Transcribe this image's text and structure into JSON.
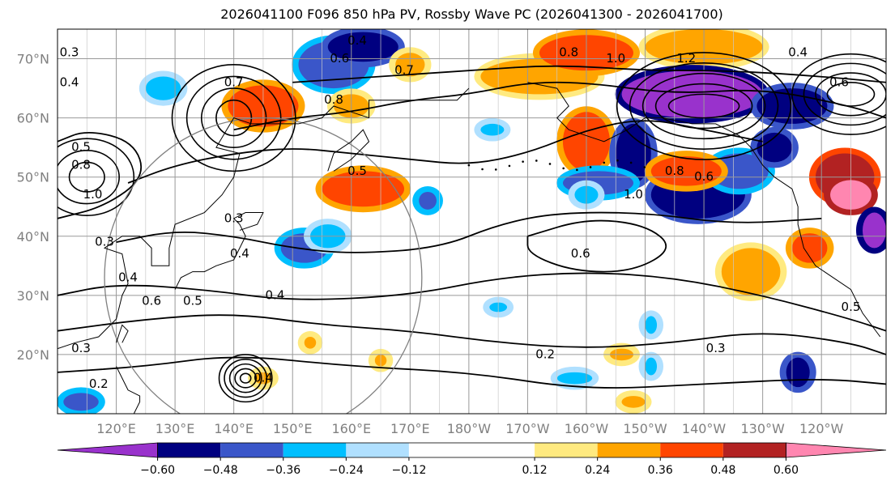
{
  "title": "2026041100 F096 850 hPa PV, Rossby Wave PC (2026041300 - 2026041700)",
  "map": {
    "projection": "PlateCarree",
    "extent": {
      "lon_min": 110,
      "lon_max": 251,
      "lat_min": 10,
      "lat_max": 75
    },
    "lat_ticks": [
      {
        "value": 20,
        "label": "20°N"
      },
      {
        "value": 30,
        "label": "30°N"
      },
      {
        "value": 40,
        "label": "40°N"
      },
      {
        "value": 50,
        "label": "50°N"
      },
      {
        "value": 60,
        "label": "60°N"
      },
      {
        "value": 70,
        "label": "70°N"
      }
    ],
    "lon_ticks": [
      {
        "value": 120,
        "label": "120°E"
      },
      {
        "value": 130,
        "label": "130°E"
      },
      {
        "value": 140,
        "label": "140°E"
      },
      {
        "value": 150,
        "label": "150°E"
      },
      {
        "value": 160,
        "label": "160°E"
      },
      {
        "value": 170,
        "label": "170°E"
      },
      {
        "value": 180,
        "label": "180°W"
      },
      {
        "value": 190,
        "label": "170°W"
      },
      {
        "value": 200,
        "label": "160°W"
      },
      {
        "value": 210,
        "label": "150°W"
      },
      {
        "value": 220,
        "label": "140°W"
      },
      {
        "value": 230,
        "label": "130°W"
      },
      {
        "value": 240,
        "label": "120°W"
      }
    ],
    "gridline_color": "#999999",
    "coast_color": "#000000",
    "contour_field": "850 hPa PV",
    "contour_labels": [
      {
        "text": "0.4",
        "lon": 112,
        "lat": 66
      },
      {
        "text": "0.3",
        "lon": 112,
        "lat": 71
      },
      {
        "text": "0.8",
        "lon": 114,
        "lat": 52
      },
      {
        "text": "1.0",
        "lon": 116,
        "lat": 47
      },
      {
        "text": "0.5",
        "lon": 114,
        "lat": 55
      },
      {
        "text": "0.3",
        "lon": 118,
        "lat": 39
      },
      {
        "text": "0.4",
        "lon": 122,
        "lat": 33
      },
      {
        "text": "0.6",
        "lon": 126,
        "lat": 29
      },
      {
        "text": "0.5",
        "lon": 133,
        "lat": 29
      },
      {
        "text": "0.4",
        "lon": 147,
        "lat": 30
      },
      {
        "text": "0.3",
        "lon": 140,
        "lat": 43
      },
      {
        "text": "0.4",
        "lon": 141,
        "lat": 37
      },
      {
        "text": "0.5",
        "lon": 161,
        "lat": 51
      },
      {
        "text": "0.8",
        "lon": 157,
        "lat": 63
      },
      {
        "text": "0.4",
        "lon": 161,
        "lat": 73
      },
      {
        "text": "0.6",
        "lon": 158,
        "lat": 70
      },
      {
        "text": "0.7",
        "lon": 140,
        "lat": 66
      },
      {
        "text": "0.7",
        "lon": 169,
        "lat": 68
      },
      {
        "text": "0.8",
        "lon": 197,
        "lat": 71
      },
      {
        "text": "1.0",
        "lon": 205,
        "lat": 70
      },
      {
        "text": "1.2",
        "lon": 217,
        "lat": 70
      },
      {
        "text": "1.0",
        "lon": 208,
        "lat": 47
      },
      {
        "text": "0.8",
        "lon": 215,
        "lat": 51
      },
      {
        "text": "0.6",
        "lon": 220,
        "lat": 50
      },
      {
        "text": "0.6",
        "lon": 199,
        "lat": 37
      },
      {
        "text": "0.2",
        "lon": 193,
        "lat": 20
      },
      {
        "text": "0.3",
        "lon": 222,
        "lat": 21
      },
      {
        "text": "0.5",
        "lon": 245,
        "lat": 28
      },
      {
        "text": "0.6",
        "lon": 243,
        "lat": 66
      },
      {
        "text": "0.4",
        "lon": 236,
        "lat": 71
      },
      {
        "text": "0.3",
        "lon": 114,
        "lat": 21
      },
      {
        "text": "0.2",
        "lon": 117,
        "lat": 15
      },
      {
        "text": "0.4",
        "lon": 145,
        "lat": 16
      }
    ]
  },
  "colorbar": {
    "levels": [
      -0.72,
      -0.6,
      -0.48,
      -0.36,
      -0.24,
      -0.12,
      0.12,
      0.24,
      0.36,
      0.48,
      0.6,
      0.72
    ],
    "tick_labels": [
      "−0.60",
      "−0.48",
      "−0.36",
      "−0.24",
      "−0.12",
      "0.12",
      "0.24",
      "0.36",
      "0.48",
      "0.60"
    ],
    "colors": [
      "#9932cc",
      "#000080",
      "#3a56c9",
      "#00bfff",
      "#b0e0ff",
      "#ffffff",
      "#ffea80",
      "#ffa500",
      "#ff4500",
      "#b22222",
      "#ff86b0"
    ],
    "extend": "both"
  },
  "shaded_anomalies": [
    {
      "lon": 128,
      "lat": 65,
      "rx": 3,
      "ry": 2,
      "value": -0.3
    },
    {
      "lon": 157,
      "lat": 69,
      "rx": 6,
      "ry": 4,
      "value": -0.4
    },
    {
      "lon": 162,
      "lat": 72,
      "rx": 6,
      "ry": 2.5,
      "value": -0.52
    },
    {
      "lon": 145,
      "lat": 62,
      "rx": 6,
      "ry": 3.5,
      "value": 0.42
    },
    {
      "lon": 160,
      "lat": 62,
      "rx": 3,
      "ry": 2,
      "value": 0.3
    },
    {
      "lon": 170,
      "lat": 69,
      "rx": 2.5,
      "ry": 2,
      "value": 0.3
    },
    {
      "lon": 192,
      "lat": 67,
      "rx": 10,
      "ry": 3,
      "value": 0.3
    },
    {
      "lon": 200,
      "lat": 71,
      "rx": 8,
      "ry": 3,
      "value": 0.45
    },
    {
      "lon": 220,
      "lat": 72,
      "rx": 10,
      "ry": 3,
      "value": 0.35
    },
    {
      "lon": 200,
      "lat": 56,
      "rx": 4,
      "ry": 5,
      "value": 0.45
    },
    {
      "lon": 218,
      "lat": 64,
      "rx": 12,
      "ry": 4,
      "value": -0.62
    },
    {
      "lon": 235,
      "lat": 62,
      "rx": 6,
      "ry": 3,
      "value": -0.5
    },
    {
      "lon": 208,
      "lat": 54,
      "rx": 3,
      "ry": 5,
      "value": -0.55
    },
    {
      "lon": 202,
      "lat": 49,
      "rx": 6,
      "ry": 2,
      "value": -0.45
    },
    {
      "lon": 219,
      "lat": 47,
      "rx": 8,
      "ry": 4,
      "value": -0.5
    },
    {
      "lon": 226,
      "lat": 51,
      "rx": 5,
      "ry": 3,
      "value": -0.4
    },
    {
      "lon": 217,
      "lat": 51,
      "rx": 6,
      "ry": 2.5,
      "value": 0.42
    },
    {
      "lon": 232,
      "lat": 55,
      "rx": 3,
      "ry": 2.5,
      "value": -0.6
    },
    {
      "lon": 244,
      "lat": 50,
      "rx": 5,
      "ry": 4,
      "value": 0.5
    },
    {
      "lon": 245,
      "lat": 47,
      "rx": 3.5,
      "ry": 2.5,
      "value": 0.65
    },
    {
      "lon": 249,
      "lat": 41,
      "rx": 2,
      "ry": 3,
      "value": -0.65
    },
    {
      "lon": 238,
      "lat": 38,
      "rx": 3,
      "ry": 2.5,
      "value": 0.38
    },
    {
      "lon": 228,
      "lat": 34,
      "rx": 5,
      "ry": 4,
      "value": 0.3
    },
    {
      "lon": 162,
      "lat": 48,
      "rx": 7,
      "ry": 3,
      "value": 0.45
    },
    {
      "lon": 152,
      "lat": 38,
      "rx": 4,
      "ry": 2.5,
      "value": -0.4
    },
    {
      "lon": 156,
      "lat": 40,
      "rx": 3,
      "ry": 2,
      "value": -0.3
    },
    {
      "lon": 173,
      "lat": 46,
      "rx": 1.5,
      "ry": 1.5,
      "value": -0.4
    },
    {
      "lon": 184,
      "lat": 58,
      "rx": 2,
      "ry": 1,
      "value": -0.3
    },
    {
      "lon": 200,
      "lat": 47,
      "rx": 2,
      "ry": 1.5,
      "value": -0.3
    },
    {
      "lon": 211,
      "lat": 25,
      "rx": 1,
      "ry": 1.5,
      "value": -0.35
    },
    {
      "lon": 211,
      "lat": 18,
      "rx": 1,
      "ry": 1.5,
      "value": -0.35
    },
    {
      "lon": 236,
      "lat": 17,
      "rx": 2,
      "ry": 2.5,
      "value": -0.5
    },
    {
      "lon": 206,
      "lat": 20,
      "rx": 2,
      "ry": 1,
      "value": 0.3
    },
    {
      "lon": 208,
      "lat": 12,
      "rx": 2,
      "ry": 1,
      "value": 0.3
    },
    {
      "lon": 198,
      "lat": 16,
      "rx": 3,
      "ry": 1,
      "value": -0.3
    },
    {
      "lon": 145,
      "lat": 16,
      "rx": 1.5,
      "ry": 1,
      "value": 0.3
    },
    {
      "lon": 114,
      "lat": 12,
      "rx": 3,
      "ry": 1.5,
      "value": -0.4
    },
    {
      "lon": 153,
      "lat": 22,
      "rx": 1,
      "ry": 1,
      "value": 0.3
    },
    {
      "lon": 165,
      "lat": 19,
      "rx": 1,
      "ry": 1,
      "value": 0.3
    },
    {
      "lon": 185,
      "lat": 28,
      "rx": 1.5,
      "ry": 0.8,
      "value": -0.25
    }
  ],
  "contour_lines": [
    {
      "points": [
        [
          110,
          30
        ],
        [
          120,
          32
        ],
        [
          135,
          31
        ],
        [
          150,
          29
        ],
        [
          170,
          30
        ],
        [
          185,
          33
        ],
        [
          200,
          34
        ],
        [
          215,
          33
        ],
        [
          230,
          30
        ],
        [
          245,
          26
        ],
        [
          251,
          24
        ]
      ]
    },
    {
      "points": [
        [
          110,
          24
        ],
        [
          125,
          26
        ],
        [
          140,
          27
        ],
        [
          155,
          25
        ],
        [
          170,
          24
        ],
        [
          185,
          22
        ],
        [
          200,
          21
        ],
        [
          215,
          22
        ],
        [
          230,
          24
        ],
        [
          245,
          22
        ],
        [
          251,
          20
        ]
      ]
    },
    {
      "points": [
        [
          110,
          17
        ],
        [
          125,
          18
        ],
        [
          140,
          20
        ],
        [
          160,
          18
        ],
        [
          180,
          17
        ],
        [
          200,
          14
        ],
        [
          220,
          15
        ],
        [
          240,
          16
        ],
        [
          251,
          15
        ]
      ]
    },
    {
      "points": [
        [
          120,
          39
        ],
        [
          130,
          41
        ],
        [
          140,
          40
        ],
        [
          150,
          38
        ],
        [
          160,
          37
        ],
        [
          175,
          38
        ],
        [
          185,
          42
        ],
        [
          195,
          44
        ],
        [
          210,
          44
        ],
        [
          225,
          42
        ],
        [
          240,
          43
        ]
      ]
    },
    {
      "points": [
        [
          122,
          49
        ],
        [
          130,
          52
        ],
        [
          140,
          54
        ],
        [
          150,
          55
        ],
        [
          160,
          54
        ],
        [
          170,
          53
        ],
        [
          180,
          52
        ],
        [
          190,
          54
        ],
        [
          200,
          58
        ],
        [
          210,
          60
        ],
        [
          220,
          58
        ],
        [
          230,
          56
        ]
      ]
    },
    {
      "points": [
        [
          140,
          58
        ],
        [
          150,
          60
        ],
        [
          160,
          61
        ],
        [
          170,
          63
        ],
        [
          180,
          64
        ],
        [
          190,
          66
        ],
        [
          200,
          66
        ],
        [
          215,
          64
        ],
        [
          230,
          65
        ],
        [
          245,
          62
        ],
        [
          251,
          60
        ]
      ]
    },
    {
      "points": [
        [
          150,
          66
        ],
        [
          165,
          67
        ],
        [
          180,
          68
        ],
        [
          195,
          69
        ],
        [
          210,
          68
        ],
        [
          225,
          68
        ],
        [
          240,
          67
        ],
        [
          251,
          66
        ]
      ]
    },
    {
      "points": [
        [
          190,
          40
        ],
        [
          200,
          43
        ],
        [
          210,
          42
        ],
        [
          215,
          38
        ],
        [
          208,
          34
        ],
        [
          198,
          34
        ],
        [
          190,
          37
        ],
        [
          190,
          40
        ]
      ]
    },
    {
      "points": [
        [
          110,
          43
        ],
        [
          118,
          45
        ],
        [
          125,
          50
        ],
        [
          123,
          56
        ],
        [
          115,
          58
        ],
        [
          110,
          56
        ]
      ]
    }
  ],
  "closed_lows": [
    {
      "lon": 142,
      "lat": 16,
      "rings": 5
    }
  ],
  "range_circle": {
    "lon": 145,
    "lat": 33,
    "radius_deg": 27
  }
}
